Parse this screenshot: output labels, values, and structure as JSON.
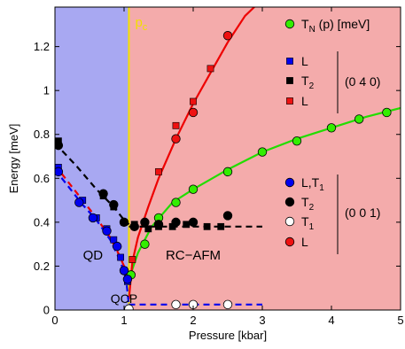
{
  "chart_data": {
    "type": "scatter",
    "xlabel": "Pressure [kbar]",
    "ylabel": "Energy [meV]",
    "xlim": [
      0,
      5
    ],
    "ylim": [
      0,
      1.38
    ],
    "x_ticks": [
      "0",
      "1",
      "2",
      "3",
      "4",
      "5"
    ],
    "y_ticks": [
      "0",
      "0.2",
      "0.4",
      "0.6",
      "0.8",
      "1",
      "1.2"
    ],
    "regions": [
      {
        "label": "QD",
        "x_range": [
          0,
          1.07
        ],
        "color": "#a8a8f2"
      },
      {
        "label": "RC−AFM",
        "x_range": [
          1.07,
          5
        ],
        "color": "#f4abab"
      }
    ],
    "critical_pressure": {
      "label_main": "p",
      "label_sub": "c",
      "x": 1.07,
      "color": "#f2e000"
    },
    "annotations": [
      {
        "text": "QCP",
        "x": 0.6,
        "y": 0.025,
        "color": "#f2e000"
      }
    ],
    "legend": {
      "tn": {
        "label_main": "T",
        "label_sub": "N",
        "label_rest": "(p) [meV]",
        "marker": "circle",
        "color": "#33ee00"
      },
      "group_040": {
        "label": "(0 4 0)",
        "items": [
          {
            "label_main": "L",
            "label_sub": "",
            "marker": "square",
            "color": "#0000ee"
          },
          {
            "label_main": "T",
            "label_sub": "2",
            "marker": "square",
            "color": "#000000"
          },
          {
            "label_main": "L",
            "label_sub": "",
            "marker": "square",
            "color": "#ee1111"
          }
        ]
      },
      "group_001": {
        "label": "(0 0 1)",
        "items": [
          {
            "label_main": "L,T",
            "label_sub": "1",
            "marker": "circle",
            "color": "#0000ee"
          },
          {
            "label_main": "T",
            "label_sub": "2",
            "marker": "circle",
            "color": "#000000"
          },
          {
            "label_main": "T",
            "label_sub": "1",
            "marker": "circle",
            "color": "#ffffff"
          },
          {
            "label_main": "L",
            "label_sub": "",
            "marker": "circle",
            "color": "#ee1111"
          }
        ]
      }
    },
    "series": [
      {
        "name": "T_N(p)",
        "marker": "circle",
        "color": "#33ee00",
        "x": [
          1.1,
          1.3,
          1.5,
          1.75,
          2.0,
          2.5,
          3.0,
          3.5,
          4.0,
          4.4,
          4.8
        ],
        "y": [
          0.16,
          0.3,
          0.42,
          0.49,
          0.55,
          0.63,
          0.72,
          0.77,
          0.83,
          0.87,
          0.9
        ]
      },
      {
        "name": "L (0 4 0)",
        "marker": "square",
        "color": "#0000ee",
        "x": [
          0.05,
          0.4,
          0.6,
          0.75,
          0.85,
          0.95,
          1.0,
          1.05
        ],
        "y": [
          0.65,
          0.5,
          0.42,
          0.37,
          0.32,
          0.24,
          0.18,
          0.13
        ]
      },
      {
        "name": "T2 (0 4 0)",
        "marker": "square",
        "color": "#000000",
        "x": [
          0.05,
          0.7,
          0.85,
          1.0,
          1.15,
          1.35,
          1.5,
          1.7,
          1.9,
          2.2,
          2.4
        ],
        "y": [
          0.77,
          0.52,
          0.47,
          0.4,
          0.39,
          0.37,
          0.38,
          0.38,
          0.39,
          0.38,
          0.38
        ]
      },
      {
        "name": "L red (0 4 0)",
        "marker": "square",
        "color": "#ee1111",
        "x": [
          1.12,
          1.5,
          1.75,
          2.0,
          2.25
        ],
        "y": [
          0.23,
          0.63,
          0.84,
          0.95,
          1.1
        ]
      },
      {
        "name": "L,T1 (0 0 1)",
        "marker": "circle",
        "color": "#0000ee",
        "x": [
          0.05,
          0.35,
          0.55,
          0.75,
          0.9,
          1.0,
          1.05
        ],
        "y": [
          0.63,
          0.49,
          0.42,
          0.36,
          0.29,
          0.18,
          0.14
        ]
      },
      {
        "name": "T2 (0 0 1)",
        "marker": "circle",
        "color": "#000000",
        "x": [
          0.05,
          0.7,
          0.85,
          1.0,
          1.15,
          1.3,
          1.5,
          1.75,
          2.0,
          2.5
        ],
        "y": [
          0.75,
          0.53,
          0.48,
          0.4,
          0.38,
          0.4,
          0.39,
          0.4,
          0.4,
          0.43
        ]
      },
      {
        "name": "T1 (0 0 1)",
        "marker": "circle",
        "color": "#ffffff",
        "x": [
          1.07,
          1.75,
          2.0,
          2.5
        ],
        "y": [
          0.005,
          0.025,
          0.025,
          0.025
        ]
      },
      {
        "name": "L red (0 0 1)",
        "marker": "circle",
        "color": "#ee1111",
        "x": [
          1.75,
          2.0,
          2.5
        ],
        "y": [
          0.78,
          0.9,
          1.25
        ]
      }
    ],
    "fit_curves": [
      {
        "name": "green fit",
        "color": "#22dd00",
        "style": "solid",
        "x": [
          1.07,
          1.2,
          1.4,
          1.7,
          2.0,
          2.5,
          3.0,
          3.5,
          4.0,
          4.5,
          5.0
        ],
        "y": [
          0.14,
          0.26,
          0.38,
          0.49,
          0.55,
          0.64,
          0.72,
          0.78,
          0.83,
          0.88,
          0.92
        ]
      },
      {
        "name": "red fit",
        "color": "#ee0000",
        "style": "solid",
        "x": [
          1.07,
          1.12,
          1.2,
          1.35,
          1.5,
          1.75,
          2.0,
          2.25,
          2.5,
          2.75,
          2.95
        ],
        "y": [
          0.05,
          0.22,
          0.33,
          0.47,
          0.6,
          0.78,
          0.94,
          1.08,
          1.22,
          1.34,
          1.4
        ]
      },
      {
        "name": "red dashed QD",
        "color": "#ee0000",
        "style": "dashed",
        "x": [
          0.0,
          0.2,
          0.4,
          0.6,
          0.8,
          0.9,
          1.0,
          1.07
        ],
        "y": [
          0.66,
          0.58,
          0.5,
          0.42,
          0.33,
          0.27,
          0.2,
          0.14
        ]
      },
      {
        "name": "blue dashed QD",
        "color": "#0000ee",
        "style": "dashed",
        "x": [
          0.0,
          0.2,
          0.4,
          0.6,
          0.8,
          0.95,
          1.03,
          1.07
        ],
        "y": [
          0.64,
          0.56,
          0.48,
          0.41,
          0.32,
          0.22,
          0.14,
          0.02
        ]
      },
      {
        "name": "blue dashed low",
        "color": "#0000ee",
        "style": "dashed",
        "x": [
          1.07,
          3.0
        ],
        "y": [
          0.025,
          0.025
        ]
      },
      {
        "name": "black dashed QD",
        "color": "#000000",
        "style": "dashed",
        "x": [
          0.0,
          0.3,
          0.6,
          0.85,
          1.0,
          1.07
        ],
        "y": [
          0.76,
          0.66,
          0.55,
          0.47,
          0.41,
          0.39
        ]
      },
      {
        "name": "black dashed AFM",
        "color": "#000000",
        "style": "dashed",
        "x": [
          1.07,
          3.0
        ],
        "y": [
          0.38,
          0.38
        ]
      }
    ]
  }
}
